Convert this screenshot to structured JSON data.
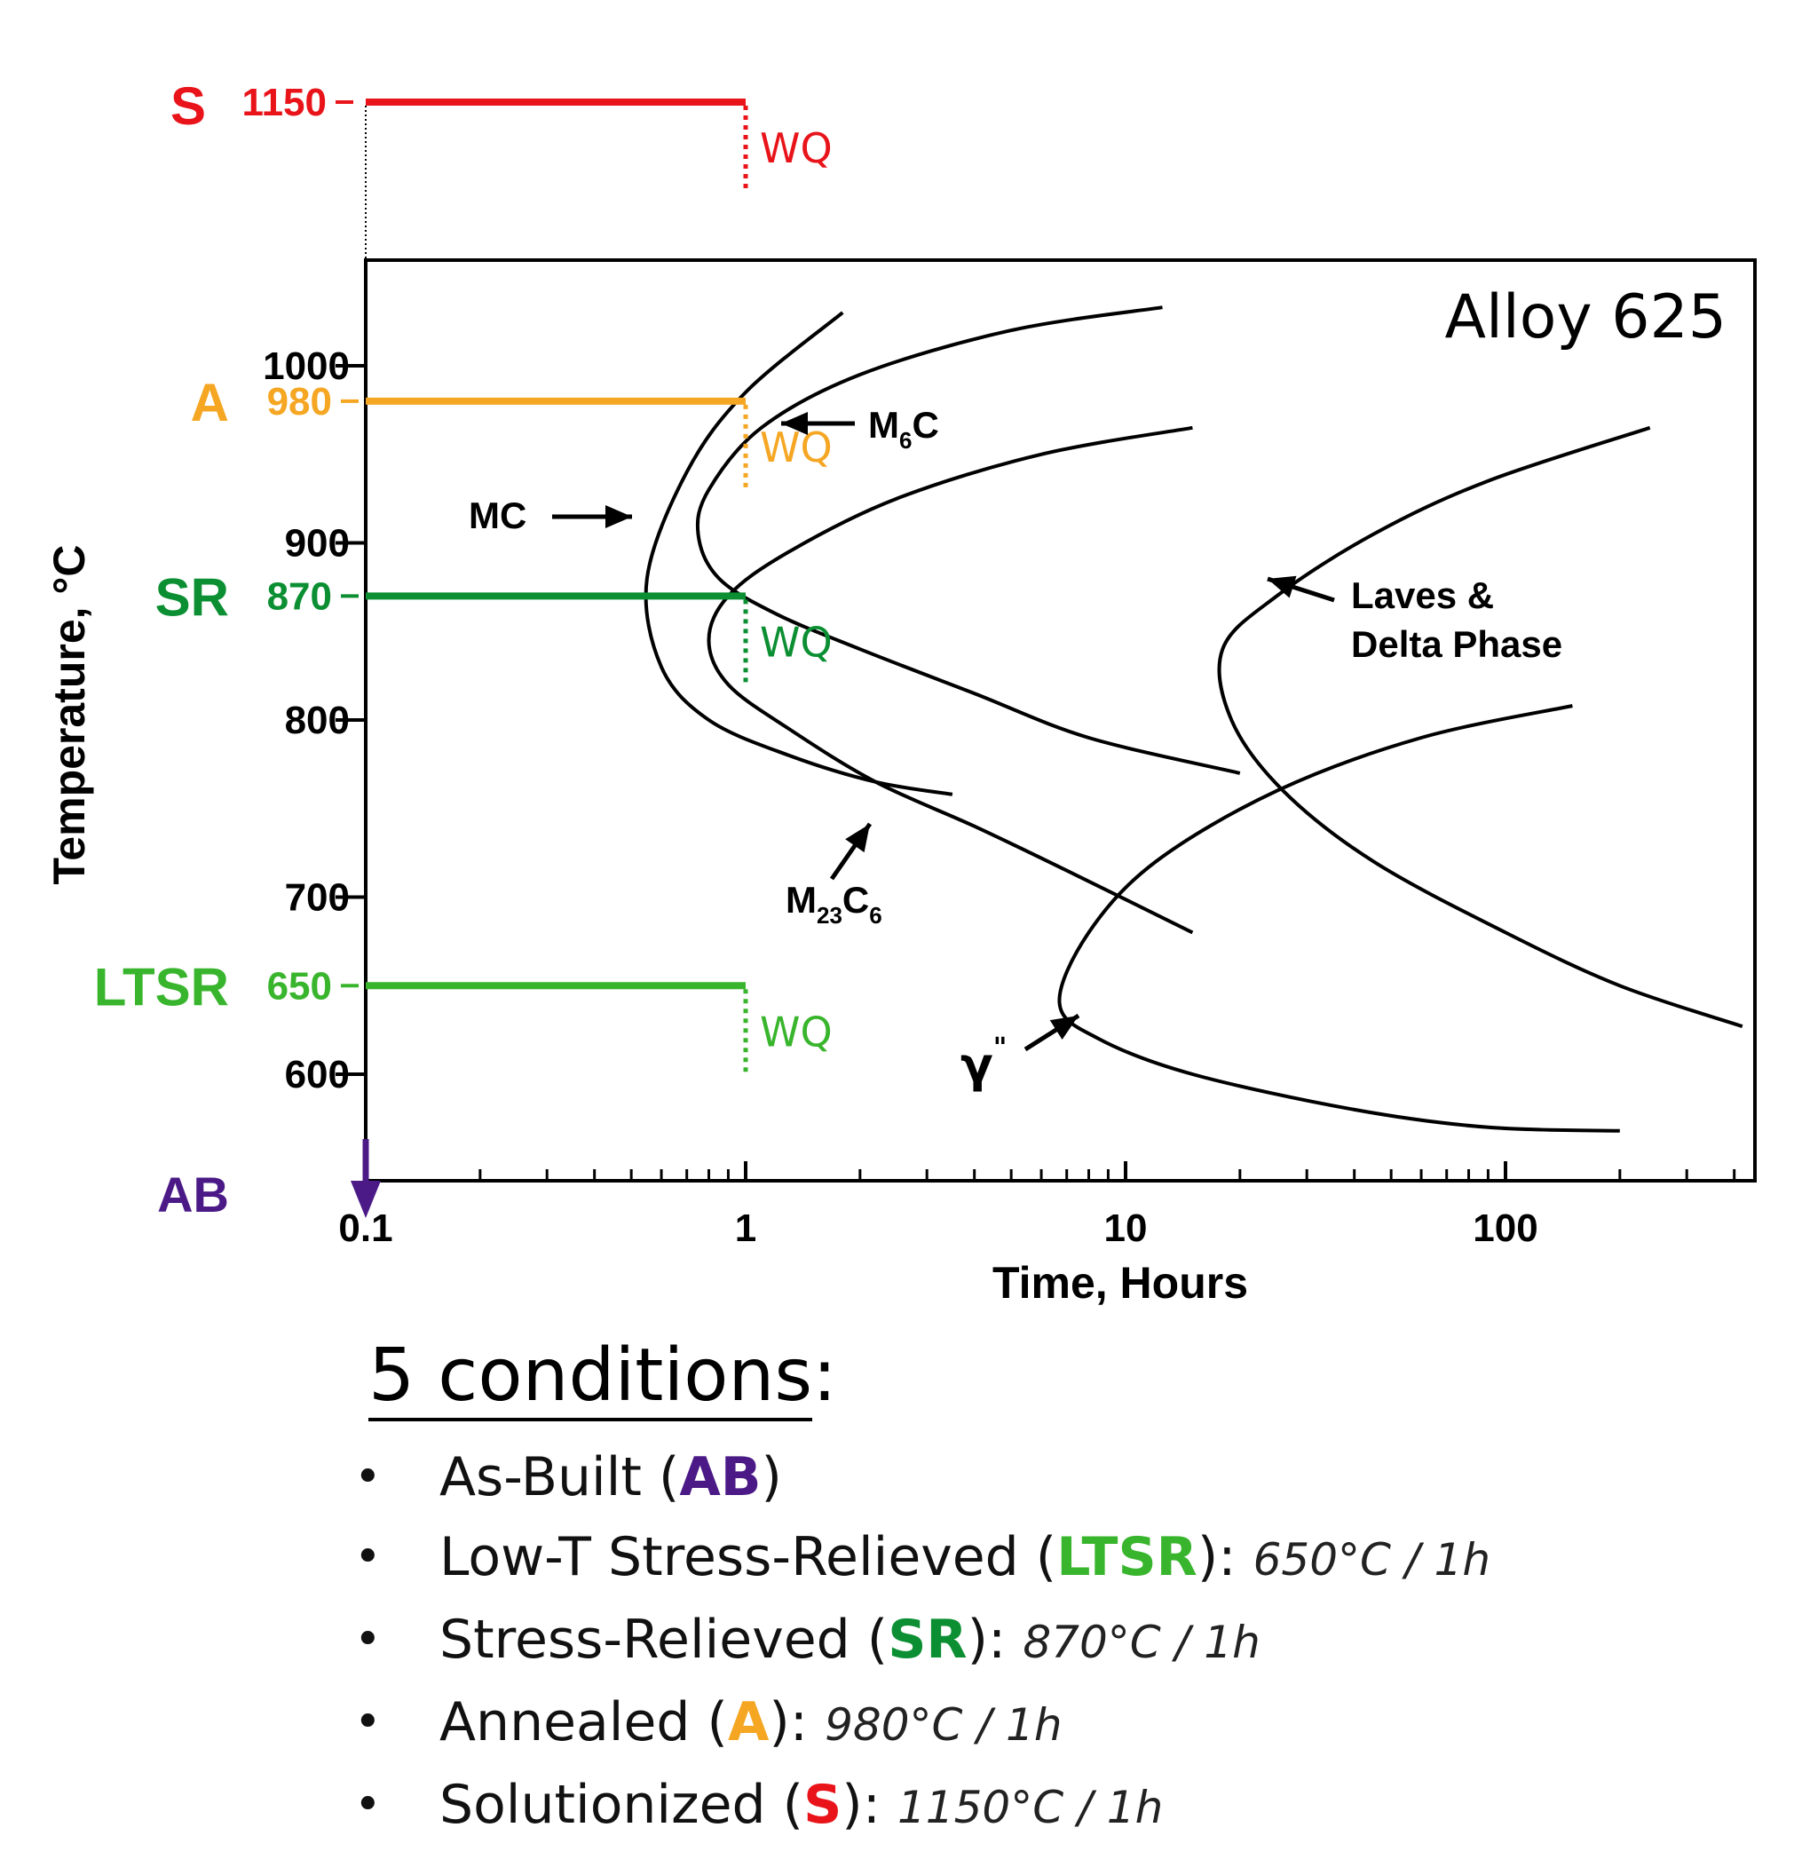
{
  "chart_data": {
    "type": "line",
    "title": "Alloy 625",
    "xlabel": "Time, Hours",
    "ylabel": "Temperature, °C",
    "x_scale": "log",
    "xlim": [
      0.1,
      460
    ],
    "ylim": [
      540,
      1060
    ],
    "x_ticks": [
      {
        "value": 0.1,
        "label": "0.1"
      },
      {
        "value": 1,
        "label": "1"
      },
      {
        "value": 10,
        "label": "10"
      },
      {
        "value": 100,
        "label": "100"
      }
    ],
    "y_ticks": [
      {
        "value": 1000,
        "label": "1000"
      },
      {
        "value": 900,
        "label": "900"
      },
      {
        "value": 800,
        "label": "800"
      },
      {
        "value": 700,
        "label": "700"
      },
      {
        "value": 600,
        "label": "600"
      }
    ],
    "series": [
      {
        "name": "MC",
        "points": [
          [
            1.8,
            1030
          ],
          [
            1.0,
            985
          ],
          [
            0.7,
            940
          ],
          [
            0.55,
            880
          ],
          [
            0.6,
            830
          ],
          [
            0.8,
            800
          ],
          [
            1.3,
            780
          ],
          [
            2.2,
            765
          ],
          [
            3.5,
            758
          ]
        ]
      },
      {
        "name": "M6C",
        "points": [
          [
            12.5,
            1033
          ],
          [
            5,
            1020
          ],
          [
            2,
            995
          ],
          [
            1.1,
            965
          ],
          [
            0.8,
            930
          ],
          [
            0.75,
            905
          ],
          [
            0.85,
            880
          ],
          [
            1.2,
            860
          ],
          [
            2,
            840
          ],
          [
            4,
            815
          ],
          [
            8,
            790
          ],
          [
            20,
            770
          ]
        ]
      },
      {
        "name": "M23C6",
        "points": [
          [
            15,
            965
          ],
          [
            6,
            950
          ],
          [
            2.5,
            925
          ],
          [
            1.3,
            895
          ],
          [
            0.9,
            870
          ],
          [
            0.8,
            845
          ],
          [
            0.9,
            820
          ],
          [
            1.3,
            795
          ],
          [
            2.2,
            765
          ],
          [
            4,
            740
          ],
          [
            7,
            715
          ],
          [
            15,
            680
          ]
        ]
      },
      {
        "name": "Laves & Delta Phase",
        "points": [
          [
            240,
            965
          ],
          [
            90,
            935
          ],
          [
            45,
            905
          ],
          [
            25,
            870
          ],
          [
            18,
            840
          ],
          [
            19,
            800
          ],
          [
            26,
            760
          ],
          [
            45,
            720
          ],
          [
            100,
            680
          ],
          [
            200,
            650
          ],
          [
            420,
            627
          ]
        ]
      },
      {
        "name": "γ\"",
        "points": [
          [
            150,
            808
          ],
          [
            60,
            790
          ],
          [
            25,
            760
          ],
          [
            12,
            720
          ],
          [
            8,
            680
          ],
          [
            6.7,
            640
          ],
          [
            8.5,
            620
          ],
          [
            15,
            600
          ],
          [
            40,
            580
          ],
          [
            90,
            570
          ],
          [
            200,
            568
          ]
        ]
      }
    ],
    "curve_labels": [
      {
        "text": "MC"
      },
      {
        "text": "M",
        "sub": "6",
        "rest": "C"
      },
      {
        "text": "M",
        "sub": "23",
        "rest": "C",
        "sub2": "6"
      },
      {
        "text": "Laves &"
      },
      {
        "text": "Delta Phase"
      },
      {
        "text": "γ",
        "sup": "\""
      }
    ],
    "treatments": [
      {
        "code": "S",
        "temp": 1150,
        "temp_label": "1150",
        "duration_h": 1,
        "quench": "WQ",
        "color": "#e8141a"
      },
      {
        "code": "A",
        "temp": 980,
        "temp_label": "980",
        "duration_h": 1,
        "quench": "WQ",
        "color": "#f5a623"
      },
      {
        "code": "SR",
        "temp": 870,
        "temp_label": "870",
        "duration_h": 1,
        "quench": "WQ",
        "color": "#0b8f32"
      },
      {
        "code": "LTSR",
        "temp": 650,
        "temp_label": "650",
        "duration_h": 1,
        "quench": "WQ",
        "color": "#39b52d"
      },
      {
        "code": "AB",
        "color": "#4b1a87"
      }
    ]
  },
  "conditions": {
    "title": "5 conditions",
    "title_suffix": ":",
    "items": [
      {
        "prefix": "As-Built (",
        "tag": "AB",
        "suffix": ")",
        "treatment": ""
      },
      {
        "prefix": "Low-T Stress-Relieved (",
        "tag": "LTSR",
        "suffix": "):",
        "treatment": "650°C / 1h"
      },
      {
        "prefix": "Stress-Relieved (",
        "tag": "SR",
        "suffix": "):",
        "treatment": "870°C / 1h"
      },
      {
        "prefix": "Annealed (",
        "tag": "A",
        "suffix": "):",
        "treatment": "980°C / 1h"
      },
      {
        "prefix": "Solutionized (",
        "tag": "S",
        "suffix": "):",
        "treatment": "1150°C / 1h"
      }
    ]
  }
}
